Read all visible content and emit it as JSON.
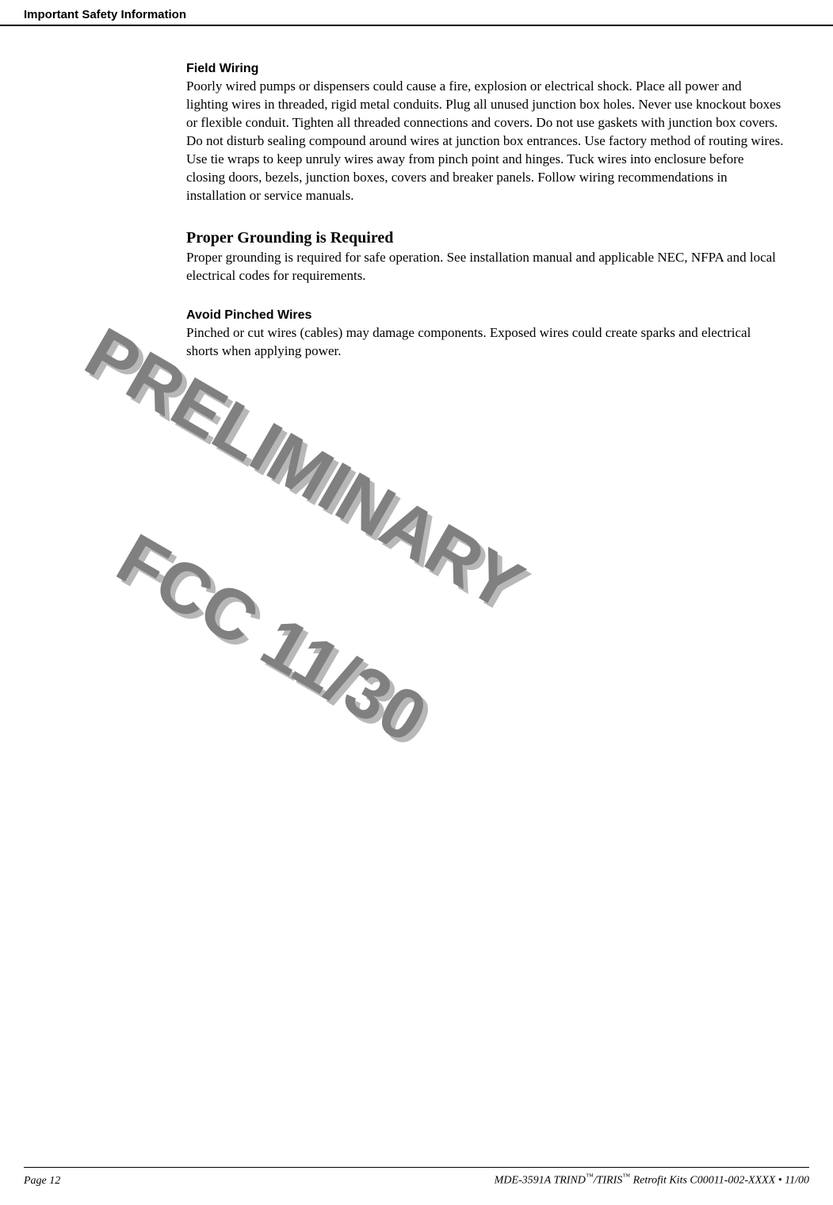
{
  "header": {
    "title": "Important Safety Information"
  },
  "sections": {
    "fieldWiring": {
      "heading": "Field Wiring",
      "body": "Poorly wired pumps or dispensers could cause a fire, explosion or electrical shock. Place all power and lighting wires in threaded, rigid metal conduits. Plug all unused junction box holes. Never use knockout boxes or flexible conduit. Tighten all threaded connections and covers. Do not use gaskets with junction box covers. Do not disturb sealing compound around wires at junction box entrances. Use factory method of routing wires. Use tie wraps to keep unruly wires away from pinch point and hinges. Tuck wires into enclosure before closing doors, bezels, junction boxes, covers and breaker panels. Follow wiring recommendations in installation or service manuals."
    },
    "grounding": {
      "heading": "Proper Grounding is Required",
      "body": "Proper grounding is required for safe operation. See installation manual and applicable NEC, NFPA and local electrical codes for requirements."
    },
    "pinchedWires": {
      "heading": "Avoid Pinched Wires",
      "body": "Pinched or cut wires (cables) may damage components. Exposed wires could create sparks and electrical shorts when applying power."
    }
  },
  "watermarks": {
    "line1": "PRELIMINARY",
    "line2": "FCC 11/30"
  },
  "footer": {
    "pageLabel": "Page 12",
    "docPrefix": "MDE-3591A TRIND",
    "tm1": "™",
    "slash": "/TIRIS",
    "tm2": "™",
    "docSuffix": "  Retrofit Kits C00011-002-XXXX • 11/00"
  },
  "styles": {
    "background": "#ffffff",
    "textColor": "#000000",
    "watermarkMain": "#808080",
    "watermarkShadow": "#b8b8b8",
    "headerFontSize": 15,
    "sectionHeadingSansSize": 16,
    "sectionHeadingSerifSize": 20,
    "bodyFontSize": 17,
    "watermarkFontSize": 90,
    "footerFontSize": 14
  }
}
